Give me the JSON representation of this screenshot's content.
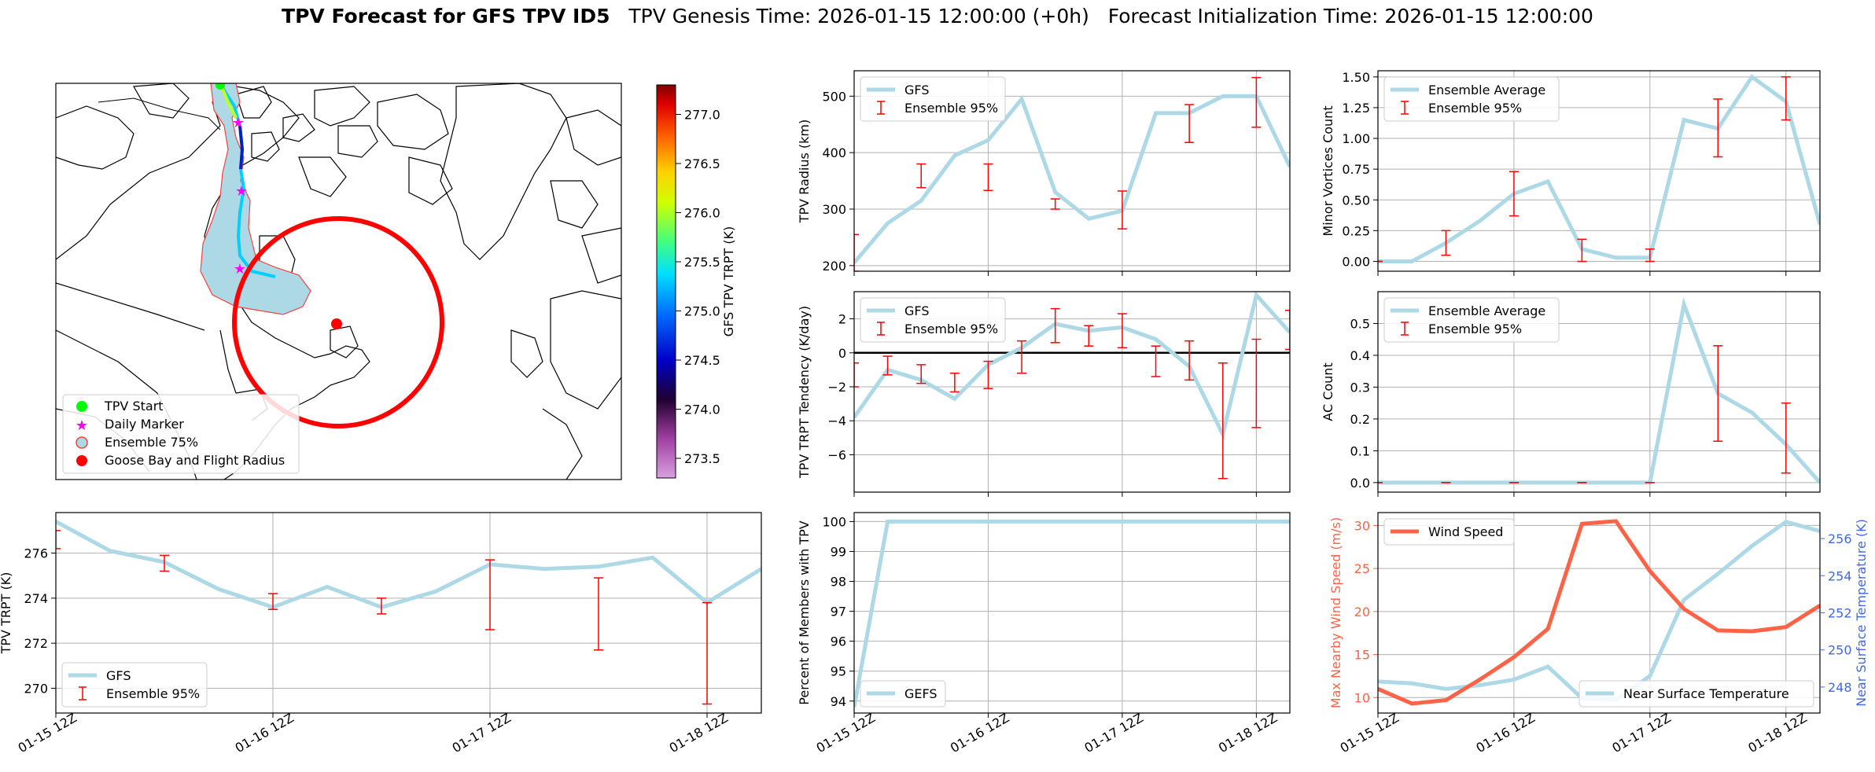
{
  "title": {
    "bold": "TPV Forecast for GFS TPV ID5",
    "genesis": "TPV Genesis Time: 2026-01-15 12:00:00 (+0h)",
    "init": "Forecast Initialization Time: 2026-01-15 12:00:00"
  },
  "colors": {
    "gfs": "#add8e6",
    "err": "#ff0000",
    "wind": "#ff6347",
    "temp_axis": "#4169e1",
    "wind_axis": "#ff6347"
  },
  "map": {
    "legend": [
      "TPV Start",
      "Daily Marker",
      "Ensemble 75%",
      "Goose Bay and Flight Radius"
    ],
    "colorbar": {
      "label": "GFS TPV TRPT (K)",
      "ticks": [
        "273.5",
        "274.0",
        "274.5",
        "275.0",
        "275.5",
        "276.0",
        "276.5",
        "277.0"
      ],
      "vmin": 273.3,
      "vmax": 277.3
    }
  },
  "time_ticks": [
    "01-15 12Z",
    "01-16 12Z",
    "01-17 12Z",
    "01-18 12Z"
  ],
  "chart_data": [
    {
      "id": "radius",
      "type": "line",
      "ylabel": "TPV Radius (km)",
      "ylim": [
        190,
        545
      ],
      "yticks": [
        200,
        300,
        400,
        500
      ],
      "x": [
        0,
        0.25,
        0.5,
        0.75,
        1,
        1.25,
        1.5,
        1.75,
        2,
        2.25,
        2.5,
        2.75,
        3,
        3.25
      ],
      "series": [
        {
          "name": "GFS",
          "values": [
            205,
            275,
            315,
            395,
            422,
            495,
            330,
            283,
            297,
            470,
            470,
            500,
            500,
            375
          ]
        }
      ],
      "errorbars": {
        "name": "Ensemble 95%",
        "x": [
          0,
          0.5,
          1,
          1.5,
          2,
          2.5,
          3
        ],
        "low": [
          190,
          338,
          333,
          300,
          265,
          418,
          445
        ],
        "high": [
          255,
          380,
          380,
          318,
          332,
          485,
          533
        ]
      },
      "legend": [
        "GFS",
        "Ensemble 95%"
      ]
    },
    {
      "id": "minor",
      "type": "line",
      "ylabel": "Minor Vortices Count",
      "ylim": [
        -0.08,
        1.55
      ],
      "yticks": [
        0.0,
        0.25,
        0.5,
        0.75,
        1.0,
        1.25,
        1.5
      ],
      "x": [
        0,
        0.25,
        0.5,
        0.75,
        1,
        1.25,
        1.5,
        1.75,
        2,
        2.25,
        2.5,
        2.75,
        3,
        3.25
      ],
      "series": [
        {
          "name": "Ensemble Average",
          "values": [
            0,
            0,
            0.15,
            0.33,
            0.55,
            0.65,
            0.1,
            0.03,
            0.03,
            1.15,
            1.08,
            1.5,
            1.3,
            0.3
          ]
        }
      ],
      "errorbars": {
        "name": "Ensemble 95%",
        "x": [
          0,
          0.5,
          1,
          1.5,
          2,
          2.5,
          3
        ],
        "low": [
          0,
          0.05,
          0.37,
          0,
          0,
          0.85,
          1.15
        ],
        "high": [
          0,
          0.25,
          0.73,
          0.18,
          0.1,
          1.32,
          1.5
        ]
      },
      "legend": [
        "Ensemble Average",
        "Ensemble 95%"
      ]
    },
    {
      "id": "tend",
      "type": "line",
      "ylabel": "TPV TRPT Tendency (K/day)",
      "ylim": [
        -8.2,
        3.6
      ],
      "yticks": [
        -6,
        -4,
        -2,
        0,
        2
      ],
      "zero": true,
      "x": [
        0,
        0.25,
        0.5,
        0.75,
        1,
        1.25,
        1.5,
        1.75,
        2,
        2.25,
        2.5,
        2.75,
        3,
        3.25
      ],
      "series": [
        {
          "name": "GFS",
          "values": [
            -3.8,
            -1,
            -1.6,
            -2.7,
            -0.7,
            0.3,
            1.7,
            1.3,
            1.5,
            0.8,
            -0.8,
            -4.8,
            3.4,
            1.2
          ]
        }
      ],
      "errorbars": {
        "name": "Ensemble 95%",
        "x": [
          0,
          0.25,
          0.5,
          0.75,
          1,
          1.25,
          1.5,
          1.75,
          2,
          2.25,
          2.5,
          2.75,
          3,
          3.25
        ],
        "low": [
          -2,
          -1.3,
          -1.8,
          -2.3,
          -2.1,
          -1.2,
          0.6,
          0.4,
          0.3,
          -1.4,
          -1.6,
          -7.4,
          -4.4,
          0.2
        ],
        "high": [
          -0.6,
          -0.2,
          -0.7,
          -1.2,
          -0.5,
          0.7,
          2.6,
          1.6,
          2.3,
          0.4,
          0.7,
          -0.6,
          0.8,
          2.5
        ]
      },
      "legend": [
        "GFS",
        "Ensemble 95%"
      ]
    },
    {
      "id": "ac",
      "type": "line",
      "ylabel": "AC Count",
      "ylim": [
        -0.03,
        0.6
      ],
      "yticks": [
        0.0,
        0.1,
        0.2,
        0.3,
        0.4,
        0.5
      ],
      "x": [
        0,
        0.25,
        0.5,
        0.75,
        1,
        1.25,
        1.5,
        1.75,
        2,
        2.25,
        2.5,
        2.75,
        3,
        3.25
      ],
      "series": [
        {
          "name": "Ensemble Average",
          "values": [
            0,
            0,
            0,
            0,
            0,
            0,
            0,
            0,
            0,
            0.56,
            0.28,
            0.22,
            0.12,
            0
          ]
        }
      ],
      "errorbars": {
        "name": "Ensemble 95%",
        "x": [
          0,
          0.5,
          1,
          1.5,
          2,
          2.5,
          3
        ],
        "low": [
          0,
          0,
          0,
          0,
          0,
          0.13,
          0.03
        ],
        "high": [
          0,
          0,
          0,
          0,
          0,
          0.43,
          0.25
        ]
      },
      "legend": [
        "Ensemble Average",
        "Ensemble 95%"
      ]
    },
    {
      "id": "trpt",
      "type": "line",
      "ylabel": "TPV TRPT (K)",
      "ylim": [
        268.9,
        277.8
      ],
      "yticks": [
        270,
        272,
        274,
        276
      ],
      "x": [
        0,
        0.25,
        0.5,
        0.75,
        1,
        1.25,
        1.5,
        1.75,
        2,
        2.25,
        2.5,
        2.75,
        3,
        3.25
      ],
      "series": [
        {
          "name": "GFS",
          "values": [
            277.4,
            276.1,
            275.6,
            274.4,
            273.6,
            274.5,
            273.6,
            274.3,
            275.5,
            275.3,
            275.4,
            275.8,
            273.8,
            275.3
          ]
        }
      ],
      "errorbars": {
        "name": "Ensemble 95%",
        "x": [
          0,
          0.5,
          1,
          1.5,
          2,
          2.5,
          3
        ],
        "low": [
          276.2,
          275.2,
          273.5,
          273.3,
          272.6,
          271.7,
          269.3
        ],
        "high": [
          277,
          275.9,
          274.2,
          274,
          275.7,
          274.9,
          273.8
        ]
      },
      "legend": [
        "GFS",
        "Ensemble 95%"
      ]
    },
    {
      "id": "percent",
      "type": "line",
      "ylabel": "Percent of Members with TPV",
      "ylim": [
        93.6,
        100.3
      ],
      "yticks": [
        94,
        95,
        96,
        97,
        98,
        99,
        100
      ],
      "x": [
        0,
        0.25,
        0.5,
        0.75,
        1,
        1.25,
        1.5,
        1.75,
        2,
        2.25,
        2.5,
        2.75,
        3,
        3.25
      ],
      "series": [
        {
          "name": "GEFS",
          "values": [
            93.8,
            100,
            100,
            100,
            100,
            100,
            100,
            100,
            100,
            100,
            100,
            100,
            100,
            100
          ]
        }
      ],
      "legend": [
        "GEFS"
      ]
    },
    {
      "id": "wind",
      "type": "line",
      "ylabel": "Max Nearby Wind Speed (m/s)",
      "ylabel2": "Near Surface Temperature (K)",
      "ylim": [
        8.2,
        31.5
      ],
      "yticks": [
        10,
        15,
        20,
        25,
        30
      ],
      "ylim2": [
        246.6,
        257.4
      ],
      "yticks2": [
        248,
        250,
        252,
        254,
        256
      ],
      "x": [
        0,
        0.25,
        0.5,
        0.75,
        1,
        1.25,
        1.5,
        1.75,
        2,
        2.25,
        2.5,
        2.75,
        3,
        3.25
      ],
      "series": [
        {
          "name": "Wind Speed",
          "values": [
            11,
            9.3,
            9.7,
            12.1,
            14.7,
            18,
            30.2,
            30.5,
            24.7,
            20.3,
            17.8,
            17.7,
            18.2,
            20.7
          ]
        },
        {
          "name": "Near Surface Temperature",
          "values": [
            248.3,
            248.2,
            247.9,
            248.1,
            248.4,
            249.1,
            247.4,
            247.3,
            248.6,
            252.7,
            254.1,
            255.6,
            256.9,
            256.4
          ]
        }
      ],
      "legend": [
        "Wind Speed",
        "Near Surface Temperature"
      ]
    }
  ]
}
